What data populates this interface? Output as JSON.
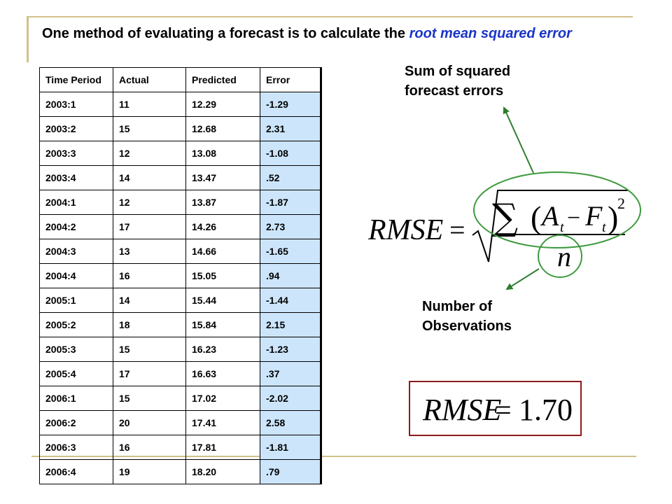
{
  "slide": {
    "title_prefix": "One method of evaluating a forecast is to calculate the ",
    "title_emphasis": "root mean squared error"
  },
  "table": {
    "columns": [
      "Time Period",
      "Actual",
      "Predicted",
      "Error"
    ],
    "rows": [
      [
        "2003:1",
        "11",
        "12.29",
        "-1.29"
      ],
      [
        "2003:2",
        "15",
        "12.68",
        "2.31"
      ],
      [
        "2003:3",
        "12",
        "13.08",
        "-1.08"
      ],
      [
        "2003:4",
        "14",
        "13.47",
        ".52"
      ],
      [
        "2004:1",
        "12",
        "13.87",
        "-1.87"
      ],
      [
        "2004:2",
        "17",
        "14.26",
        "2.73"
      ],
      [
        "2004:3",
        "13",
        "14.66",
        "-1.65"
      ],
      [
        "2004:4",
        "16",
        "15.05",
        ".94"
      ],
      [
        "2005:1",
        "14",
        "15.44",
        "-1.44"
      ],
      [
        "2005:2",
        "18",
        "15.84",
        "2.15"
      ],
      [
        "2005:3",
        "15",
        "16.23",
        "-1.23"
      ],
      [
        "2005:4",
        "17",
        "16.63",
        ".37"
      ],
      [
        "2006:1",
        "15",
        "17.02",
        "-2.02"
      ],
      [
        "2006:2",
        "20",
        "17.41",
        "2.58"
      ],
      [
        "2006:3",
        "16",
        "17.81",
        "-1.81"
      ],
      [
        "2006:4",
        "19",
        "18.20",
        ".79"
      ]
    ]
  },
  "annotations": {
    "sum_label_line1": "Sum of squared",
    "sum_label_line2": "forecast errors",
    "count_label_line1": "Number of",
    "count_label_line2": "Observations"
  },
  "formula": {
    "lhs": "RMSE",
    "equals": "=",
    "sigma": "∑",
    "open_paren": "(",
    "a": "A",
    "t1": "t",
    "minus": "−",
    "f": "F",
    "t2": "t",
    "close_paren": ")",
    "exponent": "2",
    "denominator": "n"
  },
  "result": {
    "lhs": "RMSE",
    "equals": "=",
    "value": "1.70"
  },
  "colors": {
    "title_emphasis": "#1a35c9",
    "error_column": "#cce5fb",
    "arrow": "#2f7d2f",
    "ellipse": "#3e9a3e",
    "result_border": "#8b1a1a",
    "rule": "#d1c18a"
  }
}
